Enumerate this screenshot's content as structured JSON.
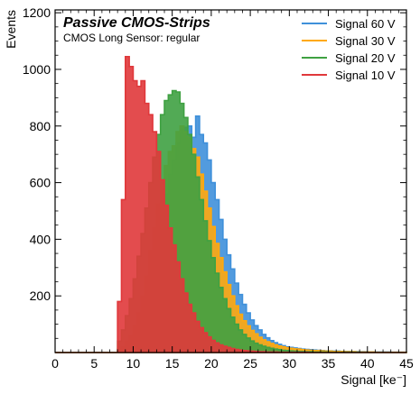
{
  "chart_data": {
    "type": "histogram",
    "title": "Passive CMOS-Strips",
    "subtitle": "CMOS Long Sensor: regular",
    "xlabel": "Signal [ke⁻]",
    "ylabel": "Events",
    "xlim": [
      0,
      45
    ],
    "ylim": [
      0,
      1210
    ],
    "xticks": [
      "0",
      "5",
      "10",
      "15",
      "20",
      "25",
      "30",
      "35",
      "40",
      "45"
    ],
    "yticks": [
      "200",
      "400",
      "600",
      "800",
      "1000",
      "1200"
    ],
    "xtick_values": [
      0,
      5,
      10,
      15,
      20,
      25,
      30,
      35,
      40,
      45
    ],
    "ytick_values": [
      200,
      400,
      600,
      800,
      1000,
      1200
    ],
    "grid": false,
    "legend_position": "top-right",
    "bin_edges_start": 0,
    "bin_width": 0.5,
    "series": [
      {
        "name": "Signal 60 V",
        "color": "#3f90da",
        "values": [
          0,
          0,
          0,
          0,
          0,
          0,
          0,
          0,
          0,
          0,
          0,
          0,
          0,
          0,
          0,
          0,
          10,
          14,
          22,
          35,
          50,
          75,
          110,
          160,
          225,
          295,
          385,
          480,
          560,
          630,
          680,
          740,
          790,
          795,
          800,
          760,
          835,
          770,
          740,
          680,
          600,
          540,
          470,
          400,
          345,
          295,
          245,
          205,
          170,
          140,
          115,
          95,
          80,
          64,
          52,
          42,
          35,
          29,
          24,
          20,
          18,
          16,
          14,
          12,
          11,
          10,
          9,
          8,
          7,
          6,
          6,
          5,
          5,
          4,
          4,
          4,
          3,
          3,
          3,
          3,
          2,
          2,
          2,
          2,
          2,
          2,
          1,
          1,
          1,
          1
        ]
      },
      {
        "name": "Signal 30 V",
        "color": "#ffa90e",
        "values": [
          0,
          0,
          0,
          0,
          0,
          0,
          0,
          0,
          0,
          0,
          0,
          0,
          0,
          0,
          0,
          0,
          12,
          20,
          40,
          60,
          95,
          140,
          200,
          270,
          360,
          440,
          525,
          600,
          660,
          710,
          730,
          780,
          800,
          780,
          760,
          720,
          690,
          630,
          570,
          510,
          445,
          385,
          335,
          285,
          240,
          200,
          165,
          135,
          112,
          94,
          78,
          66,
          54,
          45,
          38,
          32,
          27,
          23,
          20,
          17,
          15,
          13,
          12,
          10,
          9,
          8,
          7,
          7,
          6,
          5,
          5,
          4,
          4,
          4,
          3,
          3,
          3,
          2,
          2,
          2,
          2,
          2,
          1,
          1,
          1,
          1,
          1,
          1,
          1,
          1
        ]
      },
      {
        "name": "Signal 20 V",
        "color": "#3fa142",
        "values": [
          0,
          0,
          0,
          0,
          0,
          0,
          0,
          0,
          0,
          0,
          0,
          0,
          0,
          0,
          0,
          0,
          40,
          80,
          130,
          190,
          260,
          340,
          420,
          510,
          600,
          690,
          770,
          840,
          890,
          910,
          925,
          920,
          880,
          830,
          770,
          700,
          620,
          540,
          465,
          395,
          335,
          280,
          230,
          190,
          155,
          125,
          100,
          80,
          64,
          51,
          41,
          33,
          27,
          22,
          18,
          15,
          12,
          10,
          8,
          7,
          6,
          5,
          4,
          4,
          3,
          3,
          2,
          2,
          2,
          2,
          1,
          1,
          1,
          1,
          1,
          1,
          1,
          1,
          0,
          0,
          0,
          0,
          0,
          0,
          0,
          0,
          0,
          0,
          0,
          0
        ]
      },
      {
        "name": "Signal 10 V",
        "color": "#e0383b",
        "values": [
          0,
          0,
          0,
          0,
          0,
          0,
          0,
          0,
          0,
          0,
          0,
          0,
          0,
          0,
          0,
          0,
          180,
          540,
          1045,
          1010,
          960,
          940,
          960,
          880,
          840,
          780,
          710,
          610,
          520,
          440,
          380,
          320,
          260,
          210,
          170,
          140,
          110,
          88,
          70,
          55,
          43,
          34,
          27,
          22,
          18,
          14,
          11,
          9,
          7,
          6,
          5,
          4,
          3,
          3,
          2,
          2,
          2,
          1,
          1,
          1,
          1,
          1,
          1,
          1,
          1,
          0,
          0,
          0,
          0,
          0,
          0,
          0,
          0,
          0,
          0,
          0,
          0,
          0,
          0,
          0,
          0,
          0,
          0,
          0,
          0,
          0,
          0,
          0,
          0,
          0
        ]
      }
    ]
  }
}
